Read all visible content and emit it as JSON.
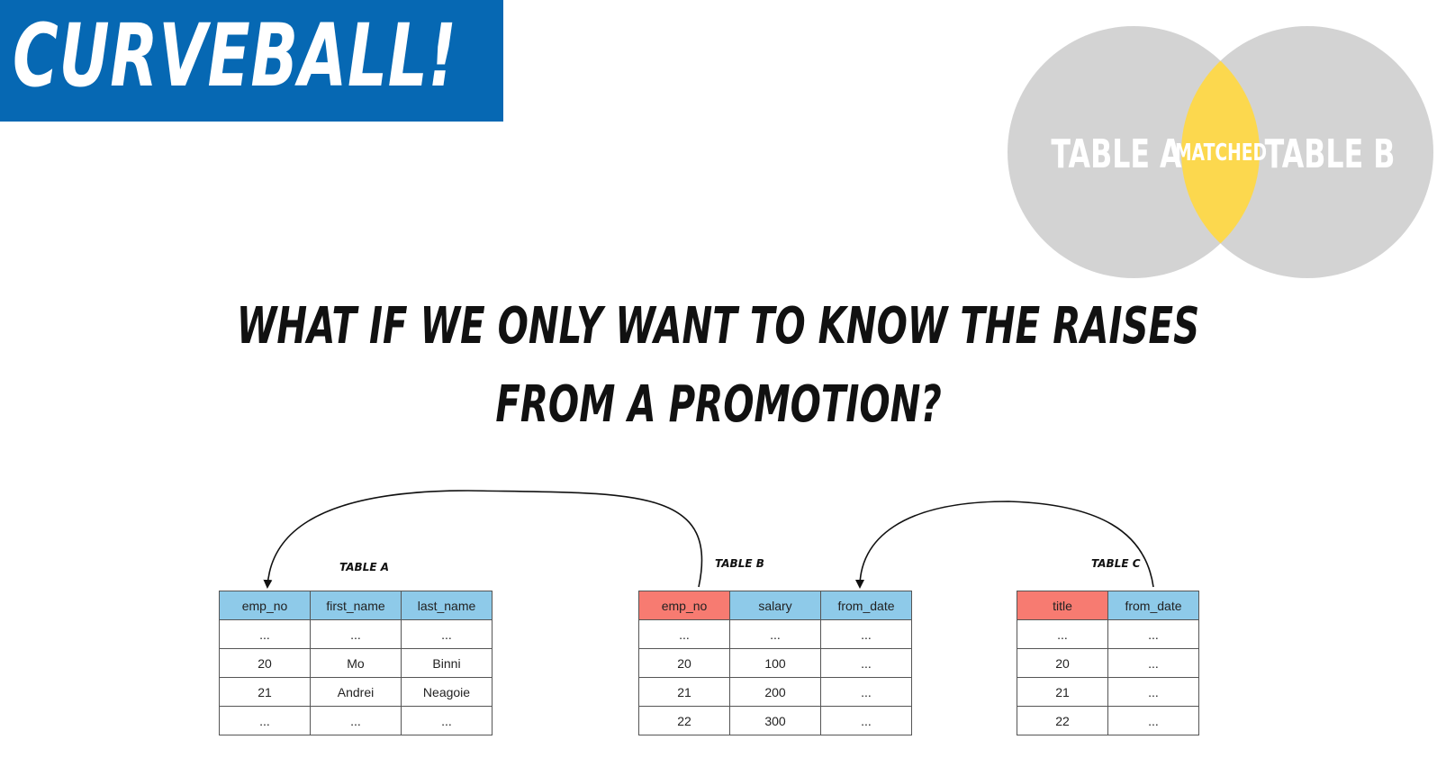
{
  "banner": {
    "title": "CURVEBALL!",
    "color": "#0668b3"
  },
  "venn": {
    "left_label": "TABLE A",
    "right_label": "TABLE B",
    "center_label": "MATCHED",
    "circle_color": "#d3d3d3",
    "highlight_color": "#fcd84e"
  },
  "question": {
    "line1": "WHAT IF WE ONLY WANT TO KNOW THE RAISES",
    "line2": "FROM A PROMOTION?"
  },
  "tables": {
    "a": {
      "label": "TABLE A",
      "headers": [
        "emp_no",
        "first_name",
        "last_name"
      ],
      "header_colors": [
        "#8ecae9",
        "#8ecae9",
        "#8ecae9"
      ],
      "rows": [
        [
          "...",
          "...",
          "..."
        ],
        [
          "20",
          "Mo",
          "Binni"
        ],
        [
          "21",
          "Andrei",
          "Neagoie"
        ],
        [
          "...",
          "...",
          "..."
        ]
      ]
    },
    "b": {
      "label": "TABLE B",
      "headers": [
        "emp_no",
        "salary",
        "from_date"
      ],
      "header_colors": [
        "#f77b71",
        "#8ecae9",
        "#8ecae9"
      ],
      "rows": [
        [
          "...",
          "...",
          "..."
        ],
        [
          "20",
          "100",
          "..."
        ],
        [
          "21",
          "200",
          "..."
        ],
        [
          "22",
          "300",
          "..."
        ]
      ]
    },
    "c": {
      "label": "TABLE C",
      "headers": [
        "title",
        "from_date"
      ],
      "header_colors": [
        "#f77b71",
        "#8ecae9"
      ],
      "rows": [
        [
          "...",
          "..."
        ],
        [
          "20",
          "..."
        ],
        [
          "21",
          "..."
        ],
        [
          "22",
          "..."
        ]
      ]
    }
  }
}
